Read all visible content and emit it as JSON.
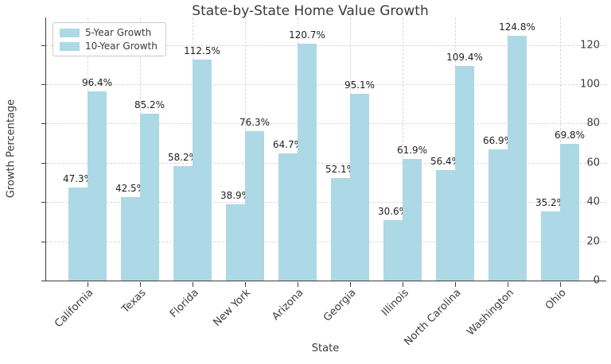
{
  "chart_data": {
    "type": "bar",
    "title": "State-by-State Home Value Growth",
    "xlabel": "State",
    "ylabel": "Growth Percentage",
    "categories": [
      "California",
      "Texas",
      "Florida",
      "New York",
      "Arizona",
      "Georgia",
      "Illinois",
      "North Carolina",
      "Washington",
      "Ohio"
    ],
    "series": [
      {
        "name": "5-Year Growth",
        "values": [
          47.3,
          42.5,
          58.2,
          38.9,
          64.7,
          52.1,
          30.6,
          56.4,
          66.9,
          35.2
        ]
      },
      {
        "name": "10-Year Growth",
        "values": [
          96.4,
          85.2,
          112.5,
          76.3,
          120.7,
          95.1,
          61.9,
          109.4,
          124.8,
          69.8
        ]
      }
    ],
    "value_label_suffix": "%",
    "yticks": [
      0,
      20,
      40,
      60,
      80,
      100,
      120
    ],
    "ylim": [
      0,
      134
    ],
    "grid": true,
    "grid_style": "dashed",
    "legend_position": "upper-left",
    "colors": {
      "bar": "#ADD8E6",
      "grid": "#d7d7d7",
      "axis": "#3f3f3f",
      "text": "#3b3b3b",
      "value_label": "#1f1f1f",
      "background": "#ffffff"
    }
  }
}
